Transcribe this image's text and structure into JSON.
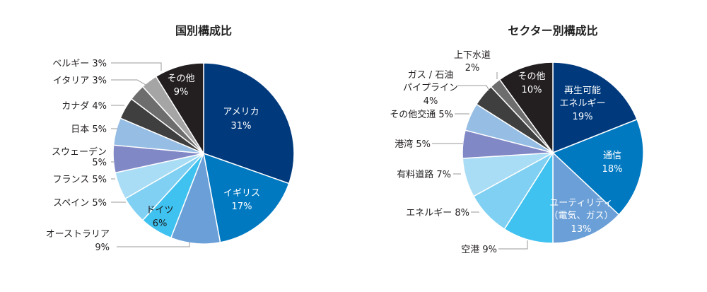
{
  "chart_data": [
    {
      "type": "pie",
      "title": "国別構成比",
      "unit": "%",
      "slices": [
        {
          "label": "アメリカ",
          "value": 31,
          "color": "#003a7d"
        },
        {
          "label": "イギリス",
          "value": 17,
          "color": "#0079c1"
        },
        {
          "label": "オーストラリア",
          "value": 9,
          "color": "#6a9fd7"
        },
        {
          "label": "ドイツ",
          "value": 6,
          "color": "#3fc2f0"
        },
        {
          "label": "スペイン",
          "value": 5,
          "color": "#7fd0f2"
        },
        {
          "label": "フランス",
          "value": 5,
          "color": "#a9dcf5"
        },
        {
          "label": "スウェーデン",
          "value": 5,
          "color": "#8188c6"
        },
        {
          "label": "日本",
          "value": 5,
          "color": "#96bde3"
        },
        {
          "label": "カナダ",
          "value": 4,
          "color": "#3f3f3f"
        },
        {
          "label": "イタリア",
          "value": 3,
          "color": "#6d6d6d"
        },
        {
          "label": "ベルギー",
          "value": 3,
          "color": "#a5a5a5"
        },
        {
          "label": "その他",
          "value": 9,
          "color": "#231f20"
        }
      ]
    },
    {
      "type": "pie",
      "title": "セクター別構成比",
      "unit": "%",
      "slices": [
        {
          "label": "再生可能エネルギー",
          "value": 19,
          "color": "#003a7d"
        },
        {
          "label": "通信",
          "value": 18,
          "color": "#0079c1"
        },
        {
          "label": "ユーティリティ（電気、ガス）",
          "value": 13,
          "color": "#6a9fd7"
        },
        {
          "label": "空港",
          "value": 9,
          "color": "#3fc2f0"
        },
        {
          "label": "エネルギー",
          "value": 8,
          "color": "#7fd0f2"
        },
        {
          "label": "有料道路",
          "value": 7,
          "color": "#a9dcf5"
        },
        {
          "label": "港湾",
          "value": 5,
          "color": "#8188c6"
        },
        {
          "label": "その他交通",
          "value": 5,
          "color": "#96bde3"
        },
        {
          "label": "ガス / 石油パイプライン",
          "value": 4,
          "color": "#3f3f3f"
        },
        {
          "label": "上下水道",
          "value": 2,
          "color": "#6d6d6d"
        },
        {
          "label": "その他",
          "value": 10,
          "color": "#231f20"
        }
      ]
    }
  ],
  "text": {
    "left_title": "国別構成比",
    "right_title": "セクター別構成比",
    "left": {
      "us_name": "アメリカ",
      "us_val": "31%",
      "uk_name": "イギリス",
      "uk_val": "17%",
      "de_name": "ドイツ",
      "de_val": "6%",
      "other_name": "その他",
      "other_val": "9%",
      "au_name": "オーストラリア",
      "au_val": "9%",
      "es": "スペイン 5%",
      "fr": "フランス 5%",
      "se_name": "スウェーデン",
      "se_val": "5%",
      "jp": "日本 5%",
      "ca": "カナダ 4%",
      "it": "イタリア 3%",
      "be": "ベルギー 3%"
    },
    "right": {
      "renew_1": "再生可能",
      "renew_2": "エネルギー",
      "renew_val": "19%",
      "tel_name": "通信",
      "tel_val": "18%",
      "util_1": "ユーティリティ",
      "util_2": "（電気、ガス）",
      "util_val": "13%",
      "other_name": "その他",
      "other_val": "10%",
      "air": "空港 9%",
      "energy": "エネルギー 8%",
      "toll": "有料道路 7%",
      "port": "港湾 5%",
      "trans": "その他交通 5%",
      "pipe_1": "ガス / 石油",
      "pipe_2": "パイプライン",
      "pipe_val": "4%",
      "water_name": "上下水道",
      "water_val": "2%"
    }
  }
}
